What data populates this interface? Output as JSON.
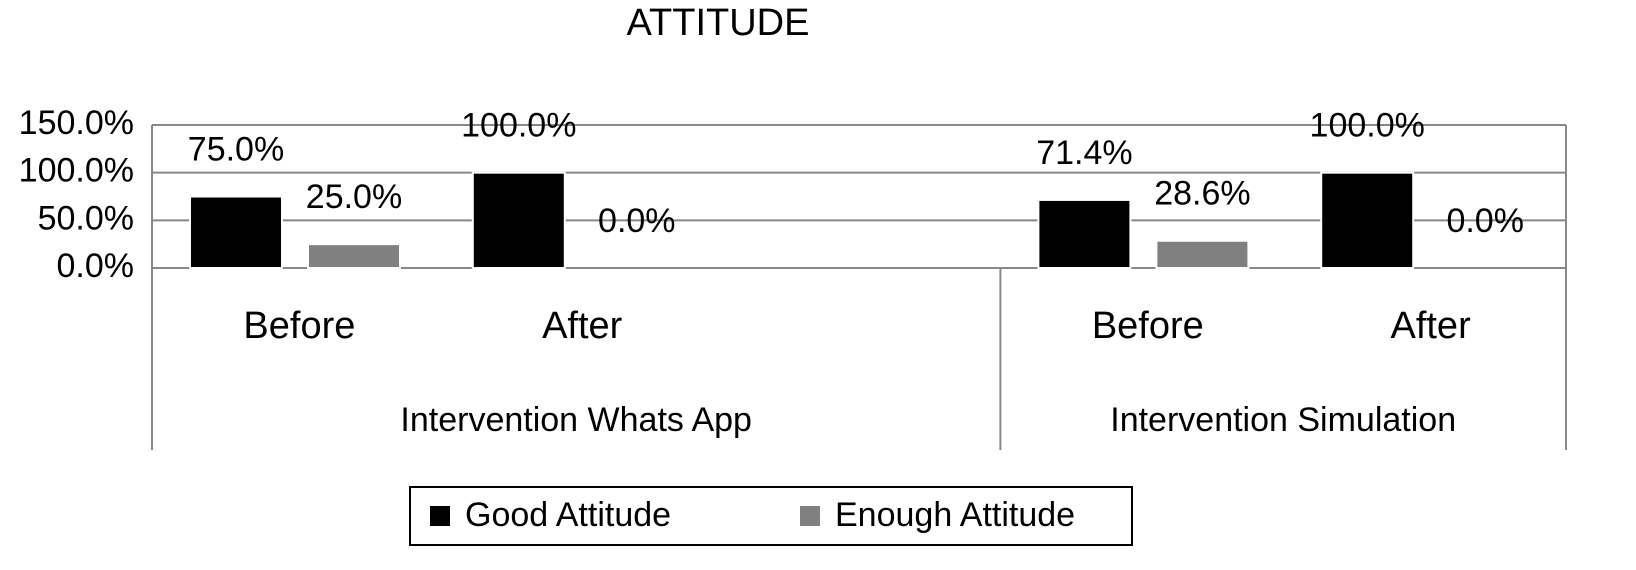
{
  "chart_data": {
    "type": "bar",
    "title": "ATTITUDE",
    "categories": [
      "Before",
      "After",
      null,
      "Before",
      "After"
    ],
    "groups": [
      {
        "label": "Intervention Whats App",
        "count": 3
      },
      {
        "label": "Intervention Simulation",
        "count": 2
      }
    ],
    "series": [
      {
        "name": "Good Attitude",
        "color": "#000000",
        "values": [
          75,
          100,
          null,
          71.4,
          100
        ],
        "value_labels": [
          "75.0%",
          "100.0%",
          null,
          "71.4%",
          "100.0%"
        ]
      },
      {
        "name": "Enough Attitude",
        "color": "#808080",
        "values": [
          25,
          0,
          null,
          28.6,
          0
        ],
        "value_labels": [
          "25.0%",
          "0.0%",
          null,
          "28.6%",
          "0.0%"
        ]
      }
    ],
    "ylim": [
      0,
      150
    ],
    "yticks": [
      {
        "value": 0,
        "label": "0.0%"
      },
      {
        "value": 50,
        "label": "50.0%"
      },
      {
        "value": 100,
        "label": "100.0%"
      },
      {
        "value": 150,
        "label": "150.0%"
      }
    ],
    "grid": true,
    "legend": "bottom"
  }
}
